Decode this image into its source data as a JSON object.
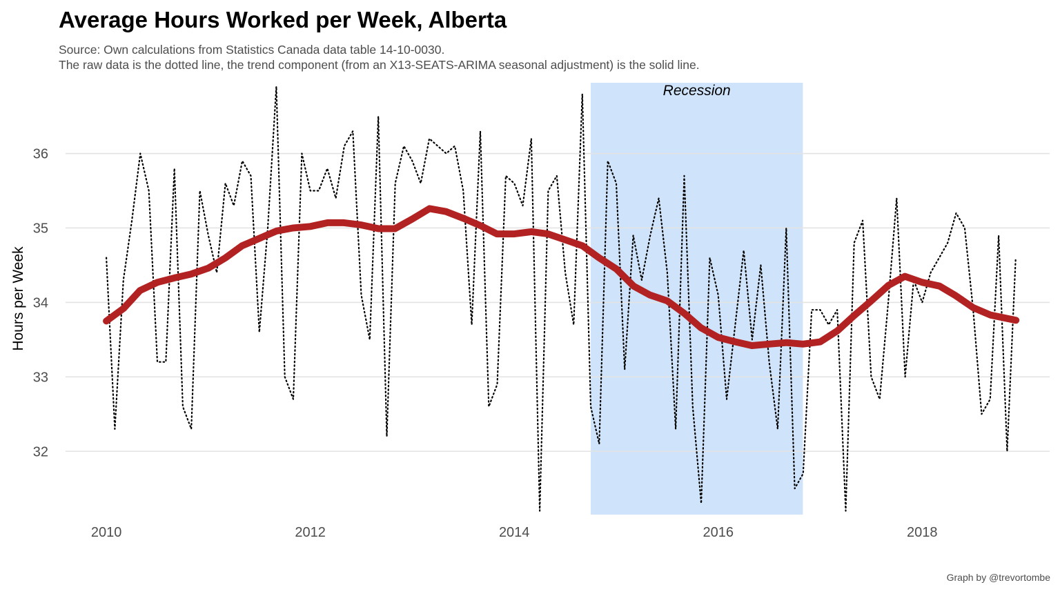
{
  "chart_data": {
    "type": "line",
    "title": "Average Hours Worked per Week, Alberta",
    "subtitle_lines": [
      "Source: Own calculations from Statistics Canada data table 14-10-0030.",
      "The raw data is the dotted line, the trend component (from an X13-SEATS-ARIMA seasonal adjustment) is the solid line."
    ],
    "caption": "Graph by @trevortombe",
    "xlabel": "",
    "ylabel": "Hours per Week",
    "xlim": [
      2009.6,
      2019.25
    ],
    "ylim": [
      31.15,
      36.95
    ],
    "x_ticks": [
      2010,
      2012,
      2014,
      2016,
      2018
    ],
    "x_tick_labels": [
      "2010",
      "2012",
      "2014",
      "2016",
      "2018"
    ],
    "y_ticks": [
      32,
      33,
      34,
      35,
      36
    ],
    "y_tick_labels": [
      "32",
      "33",
      "34",
      "35",
      "36"
    ],
    "grid": true,
    "legend": "none",
    "annotation": {
      "label": "Recession",
      "x_start": 2014.75,
      "x_end": 2016.83,
      "color": "#cfe4fb"
    },
    "series": [
      {
        "style": "dotted",
        "color": "#000000",
        "x": [
          2010.0,
          2010.083,
          2010.167,
          2010.25,
          2010.333,
          2010.417,
          2010.5,
          2010.583,
          2010.667,
          2010.75,
          2010.833,
          2010.917,
          2011.0,
          2011.083,
          2011.167,
          2011.25,
          2011.333,
          2011.417,
          2011.5,
          2011.583,
          2011.667,
          2011.75,
          2011.833,
          2011.917,
          2012.0,
          2012.083,
          2012.167,
          2012.25,
          2012.333,
          2012.417,
          2012.5,
          2012.583,
          2012.667,
          2012.75,
          2012.833,
          2012.917,
          2013.0,
          2013.083,
          2013.167,
          2013.25,
          2013.333,
          2013.417,
          2013.5,
          2013.583,
          2013.667,
          2013.75,
          2013.833,
          2013.917,
          2014.0,
          2014.083,
          2014.167,
          2014.25,
          2014.333,
          2014.417,
          2014.5,
          2014.583,
          2014.667,
          2014.75,
          2014.833,
          2014.917,
          2015.0,
          2015.083,
          2015.167,
          2015.25,
          2015.333,
          2015.417,
          2015.5,
          2015.583,
          2015.667,
          2015.75,
          2015.833,
          2015.917,
          2016.0,
          2016.083,
          2016.167,
          2016.25,
          2016.333,
          2016.417,
          2016.5,
          2016.583,
          2016.667,
          2016.75,
          2016.833,
          2016.917,
          2017.0,
          2017.083,
          2017.167,
          2017.25,
          2017.333,
          2017.417,
          2017.5,
          2017.583,
          2017.667,
          2017.75,
          2017.833,
          2017.917,
          2018.0,
          2018.083,
          2018.167,
          2018.25,
          2018.333,
          2018.417,
          2018.5,
          2018.583,
          2018.667,
          2018.75,
          2018.833,
          2018.917
        ],
        "y": [
          34.6,
          32.3,
          34.3,
          35.1,
          36.0,
          35.5,
          33.2,
          33.2,
          35.8,
          32.6,
          32.3,
          35.5,
          34.9,
          34.4,
          35.6,
          35.3,
          35.9,
          35.7,
          33.6,
          35.0,
          36.9,
          33.0,
          32.7,
          36.0,
          35.5,
          35.5,
          35.8,
          35.4,
          36.1,
          36.3,
          34.1,
          33.5,
          36.5,
          32.2,
          35.6,
          36.1,
          35.9,
          35.6,
          36.2,
          36.1,
          36.0,
          36.1,
          35.5,
          33.7,
          36.3,
          32.6,
          32.9,
          35.7,
          35.6,
          35.3,
          36.2,
          31.2,
          35.5,
          35.7,
          34.4,
          33.7,
          36.8,
          32.6,
          32.1,
          35.9,
          35.6,
          33.1,
          34.9,
          34.3,
          34.9,
          35.4,
          34.4,
          32.3,
          35.7,
          32.6,
          31.3,
          34.6,
          34.1,
          32.7,
          33.7,
          34.7,
          33.5,
          34.5,
          33.2,
          32.3,
          35.0,
          31.5,
          31.7,
          33.9,
          33.9,
          33.7,
          33.9,
          31.2,
          34.8,
          35.1,
          33.0,
          32.7,
          34.0,
          35.4,
          33.0,
          34.3,
          34.0,
          34.4,
          34.6,
          34.8,
          35.2,
          35.0,
          33.9,
          32.5,
          32.7,
          34.9,
          32.0,
          34.6
        ]
      },
      {
        "style": "solid",
        "color": "#b22222",
        "x": [
          2010.0,
          2010.17,
          2010.33,
          2010.5,
          2010.67,
          2010.83,
          2011.0,
          2011.17,
          2011.33,
          2011.5,
          2011.67,
          2011.83,
          2012.0,
          2012.17,
          2012.33,
          2012.5,
          2012.67,
          2012.83,
          2013.0,
          2013.17,
          2013.33,
          2013.5,
          2013.67,
          2013.83,
          2014.0,
          2014.17,
          2014.33,
          2014.5,
          2014.67,
          2014.83,
          2015.0,
          2015.17,
          2015.33,
          2015.5,
          2015.67,
          2015.83,
          2016.0,
          2016.17,
          2016.33,
          2016.5,
          2016.67,
          2016.83,
          2017.0,
          2017.17,
          2017.33,
          2017.5,
          2017.67,
          2017.83,
          2018.0,
          2018.17,
          2018.33,
          2018.5,
          2018.67,
          2018.92
        ],
        "y": [
          33.75,
          33.92,
          34.16,
          34.27,
          34.33,
          34.38,
          34.46,
          34.6,
          34.76,
          34.86,
          34.96,
          35.0,
          35.02,
          35.07,
          35.07,
          35.04,
          34.99,
          34.99,
          35.12,
          35.26,
          35.22,
          35.13,
          35.03,
          34.92,
          34.92,
          34.95,
          34.92,
          34.84,
          34.76,
          34.6,
          34.45,
          34.22,
          34.1,
          34.02,
          33.85,
          33.66,
          33.53,
          33.47,
          33.42,
          33.44,
          33.46,
          33.44,
          33.47,
          33.62,
          33.82,
          34.02,
          34.23,
          34.35,
          34.27,
          34.22,
          34.09,
          33.93,
          33.83,
          33.76
        ]
      }
    ]
  }
}
